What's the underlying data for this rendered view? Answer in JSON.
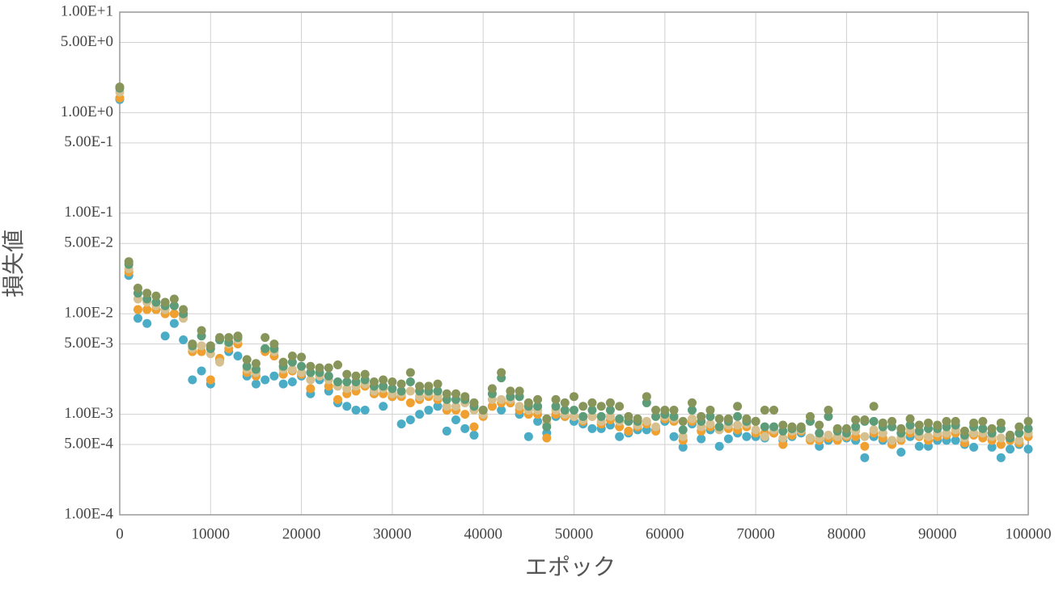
{
  "chart_data": {
    "type": "scatter",
    "y_label": "損失値",
    "x_label": "エポック",
    "log_y": true,
    "grid": true,
    "xlim": [
      0,
      100000
    ],
    "xticks": [
      0,
      10000,
      20000,
      30000,
      40000,
      50000,
      60000,
      70000,
      80000,
      90000,
      100000
    ],
    "ylim": [
      0.0001,
      10
    ],
    "yticks": [
      {
        "value": 10,
        "label": "1.00E+1"
      },
      {
        "value": 5,
        "label": "5.00E+0"
      },
      {
        "value": 1,
        "label": "1.00E+0"
      },
      {
        "value": 0.5,
        "label": "5.00E-1"
      },
      {
        "value": 0.1,
        "label": "1.00E-1"
      },
      {
        "value": 0.05,
        "label": "5.00E-2"
      },
      {
        "value": 0.01,
        "label": "1.00E-2"
      },
      {
        "value": 0.005,
        "label": "5.00E-3"
      },
      {
        "value": 0.001,
        "label": "1.00E-3"
      },
      {
        "value": 0.0005,
        "label": "5.00E-4"
      },
      {
        "value": 0.0001,
        "label": "1.00E-4"
      }
    ],
    "x": [
      0,
      1000,
      2000,
      3000,
      4000,
      5000,
      6000,
      7000,
      8000,
      9000,
      10000,
      11000,
      12000,
      13000,
      14000,
      15000,
      16000,
      17000,
      18000,
      19000,
      20000,
      21000,
      22000,
      23000,
      24000,
      25000,
      26000,
      27000,
      28000,
      29000,
      30000,
      31000,
      32000,
      33000,
      34000,
      35000,
      36000,
      37000,
      38000,
      39000,
      40000,
      41000,
      42000,
      43000,
      44000,
      45000,
      46000,
      47000,
      48000,
      49000,
      50000,
      51000,
      52000,
      53000,
      54000,
      55000,
      56000,
      57000,
      58000,
      59000,
      60000,
      61000,
      62000,
      63000,
      64000,
      65000,
      66000,
      67000,
      68000,
      69000,
      70000,
      71000,
      72000,
      73000,
      74000,
      75000,
      76000,
      77000,
      78000,
      79000,
      80000,
      81000,
      82000,
      83000,
      84000,
      85000,
      86000,
      87000,
      88000,
      89000,
      90000,
      91000,
      92000,
      93000,
      94000,
      95000,
      96000,
      97000,
      98000,
      99000,
      100000
    ],
    "series": [
      {
        "color": "#4bacc6",
        "values": [
          1.35,
          0.024,
          0.009,
          0.008,
          0.011,
          0.006,
          0.008,
          0.0055,
          0.0022,
          0.0027,
          0.002,
          0.0035,
          0.0042,
          0.0038,
          0.0024,
          0.002,
          0.0022,
          0.0024,
          0.002,
          0.0021,
          0.0024,
          0.0016,
          0.0022,
          0.0017,
          0.0013,
          0.0012,
          0.0011,
          0.0011,
          0.0016,
          0.0012,
          0.0015,
          0.0008,
          0.00088,
          0.001,
          0.0011,
          0.0012,
          0.00068,
          0.00088,
          0.00072,
          0.00062,
          0.001,
          0.0012,
          0.0011,
          0.0013,
          0.001,
          0.0006,
          0.00085,
          0.00065,
          0.00095,
          0.00095,
          0.00085,
          0.0008,
          0.00072,
          0.00072,
          0.00078,
          0.0006,
          0.00065,
          0.0007,
          0.0007,
          0.0007,
          0.00085,
          0.0006,
          0.00047,
          0.0008,
          0.00057,
          0.0007,
          0.00048,
          0.00057,
          0.00065,
          0.0006,
          0.0006,
          0.00058,
          0.00065,
          0.00055,
          0.0006,
          0.00065,
          0.00058,
          0.00048,
          0.00055,
          0.00058,
          0.00058,
          0.00055,
          0.00037,
          0.0006,
          0.00055,
          0.00052,
          0.00042,
          0.0006,
          0.00048,
          0.00048,
          0.00055,
          0.00055,
          0.00055,
          0.0005,
          0.00047,
          0.0006,
          0.00047,
          0.00037,
          0.00045,
          0.0005,
          0.00045
        ]
      },
      {
        "color": "#f0a030",
        "values": [
          1.4,
          0.026,
          0.011,
          0.011,
          0.011,
          0.01,
          0.01,
          0.0095,
          0.0042,
          0.0042,
          0.0022,
          0.0036,
          0.0045,
          0.005,
          0.0026,
          0.0024,
          0.0042,
          0.0038,
          0.0025,
          0.0027,
          0.0025,
          0.0018,
          0.0024,
          0.0019,
          0.0014,
          0.0016,
          0.0017,
          0.0019,
          0.0016,
          0.0016,
          0.0015,
          0.0015,
          0.0013,
          0.0014,
          0.0015,
          0.0014,
          0.0011,
          0.0011,
          0.001,
          0.00075,
          0.00095,
          0.0012,
          0.0013,
          0.0013,
          0.0011,
          0.001,
          0.001,
          0.00058,
          0.001,
          0.00095,
          0.00095,
          0.00085,
          0.00095,
          0.0008,
          0.00088,
          0.00075,
          0.00068,
          0.00075,
          0.0008,
          0.00068,
          0.0009,
          0.00085,
          0.00055,
          0.00085,
          0.00068,
          0.00075,
          0.00075,
          0.00072,
          0.0007,
          0.00075,
          0.00065,
          0.00065,
          0.00065,
          0.0005,
          0.00062,
          0.00068,
          0.00055,
          0.00055,
          0.00058,
          0.00055,
          0.0006,
          0.0006,
          0.00048,
          0.00065,
          0.00058,
          0.0005,
          0.00055,
          0.00065,
          0.0006,
          0.00055,
          0.0006,
          0.00062,
          0.00065,
          0.00052,
          0.00062,
          0.00058,
          0.00055,
          0.0005,
          0.00055,
          0.00052,
          0.0006
        ]
      },
      {
        "color": "#d6c08f",
        "values": [
          1.6,
          0.028,
          0.014,
          0.013,
          0.012,
          0.011,
          0.012,
          0.009,
          0.0045,
          0.0048,
          0.004,
          0.0033,
          0.005,
          0.0055,
          0.0028,
          0.0026,
          0.0045,
          0.0042,
          0.0028,
          0.0028,
          0.0026,
          0.0022,
          0.0024,
          0.0022,
          0.0019,
          0.0018,
          0.0019,
          0.002,
          0.0017,
          0.0018,
          0.0016,
          0.0016,
          0.0017,
          0.0015,
          0.0016,
          0.0015,
          0.0012,
          0.0012,
          0.0013,
          0.0011,
          0.001,
          0.0014,
          0.0014,
          0.0014,
          0.0012,
          0.0011,
          0.0011,
          0.0008,
          0.0011,
          0.001,
          0.00095,
          0.00088,
          0.00095,
          0.00085,
          0.00095,
          0.00085,
          0.00085,
          0.00078,
          0.00085,
          0.00075,
          0.00095,
          0.0009,
          0.0006,
          0.0009,
          0.00075,
          0.0008,
          0.0007,
          0.00078,
          0.00078,
          0.0008,
          0.0007,
          0.0006,
          0.0007,
          0.00058,
          0.00068,
          0.0007,
          0.00058,
          0.00058,
          0.00062,
          0.0006,
          0.00062,
          0.00068,
          0.0006,
          0.0007,
          0.00065,
          0.00055,
          0.00058,
          0.0007,
          0.00062,
          0.0006,
          0.00065,
          0.00065,
          0.0007,
          0.00058,
          0.00065,
          0.00065,
          0.0006,
          0.00058,
          0.00058,
          0.00055,
          0.00065
        ]
      },
      {
        "color": "#5c9c78",
        "values": [
          1.75,
          0.031,
          0.016,
          0.014,
          0.013,
          0.012,
          0.012,
          0.01,
          0.0048,
          0.006,
          0.0045,
          0.0055,
          0.0052,
          0.0058,
          0.003,
          0.0028,
          0.0045,
          0.0045,
          0.003,
          0.0033,
          0.003,
          0.0026,
          0.0026,
          0.0024,
          0.0021,
          0.0021,
          0.0021,
          0.0022,
          0.0019,
          0.0019,
          0.0018,
          0.0017,
          0.0021,
          0.0017,
          0.0017,
          0.0017,
          0.0014,
          0.0014,
          0.0014,
          0.0012,
          0.0011,
          0.0016,
          0.0023,
          0.0015,
          0.0015,
          0.0012,
          0.0012,
          0.00075,
          0.0012,
          0.0011,
          0.0011,
          0.00095,
          0.0011,
          0.00095,
          0.0011,
          0.0009,
          0.00085,
          0.00085,
          0.0013,
          0.00095,
          0.001,
          0.00095,
          0.0007,
          0.0011,
          0.00085,
          0.00095,
          0.00075,
          0.00085,
          0.00095,
          0.00085,
          0.00085,
          0.00075,
          0.00075,
          0.00068,
          0.00072,
          0.00072,
          0.00085,
          0.00065,
          0.00095,
          0.00068,
          0.00065,
          0.00075,
          0.00085,
          0.00085,
          0.00075,
          0.00075,
          0.00065,
          0.00078,
          0.00068,
          0.00072,
          0.00072,
          0.00075,
          0.00078,
          0.00062,
          0.00075,
          0.00072,
          0.00065,
          0.00072,
          0.00058,
          0.00065,
          0.00072
        ]
      },
      {
        "color": "#87955a",
        "values": [
          1.8,
          0.033,
          0.018,
          0.016,
          0.015,
          0.013,
          0.014,
          0.011,
          0.005,
          0.0068,
          0.0048,
          0.0058,
          0.0058,
          0.006,
          0.0035,
          0.0032,
          0.0058,
          0.005,
          0.0033,
          0.0038,
          0.0037,
          0.003,
          0.0029,
          0.0029,
          0.0031,
          0.0025,
          0.0024,
          0.0025,
          0.0021,
          0.0022,
          0.0021,
          0.002,
          0.0026,
          0.0019,
          0.0019,
          0.002,
          0.0016,
          0.0016,
          0.0015,
          0.0013,
          0.0011,
          0.0018,
          0.0026,
          0.0017,
          0.0017,
          0.0013,
          0.0014,
          0.0009,
          0.0014,
          0.0013,
          0.0015,
          0.0012,
          0.0013,
          0.0012,
          0.0013,
          0.0012,
          0.00095,
          0.0009,
          0.0015,
          0.0011,
          0.0011,
          0.0011,
          0.00085,
          0.0013,
          0.00095,
          0.0011,
          0.0009,
          0.0009,
          0.0012,
          0.0009,
          0.00085,
          0.0011,
          0.0011,
          0.00078,
          0.00075,
          0.00075,
          0.00095,
          0.00078,
          0.0011,
          0.00072,
          0.00072,
          0.00088,
          0.00088,
          0.0012,
          0.00082,
          0.00085,
          0.00072,
          0.0009,
          0.00078,
          0.00082,
          0.00078,
          0.00085,
          0.00085,
          0.00068,
          0.00082,
          0.00085,
          0.00072,
          0.00082,
          0.00062,
          0.00075,
          0.00085
        ]
      }
    ]
  }
}
